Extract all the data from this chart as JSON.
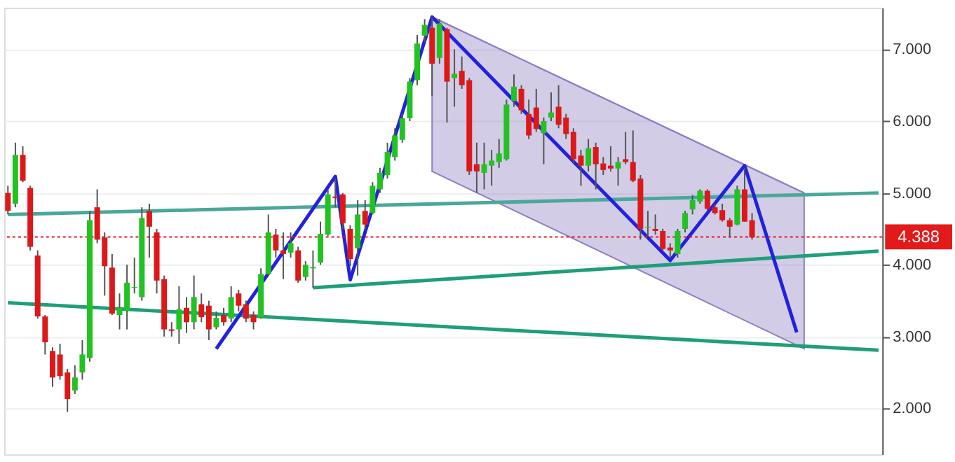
{
  "chart_data": {
    "type": "candlestick",
    "categories": [
      null,
      null,
      null,
      null,
      null,
      null,
      null,
      null,
      null,
      null,
      null,
      null,
      null,
      null,
      null,
      null,
      null,
      null,
      null,
      null,
      null,
      null,
      null,
      null,
      null,
      null,
      null,
      null,
      null,
      null,
      null,
      null,
      null,
      null,
      null,
      null,
      null,
      null,
      null,
      null,
      null,
      null,
      null,
      null,
      null,
      null,
      null,
      null,
      null,
      null,
      null,
      null,
      null,
      null,
      null,
      null,
      null,
      null,
      null,
      null,
      null,
      null,
      null,
      null,
      null,
      null,
      null,
      null,
      null,
      null,
      null,
      null,
      null,
      null,
      null,
      null,
      null,
      null,
      null,
      null,
      null,
      null,
      null,
      null,
      null,
      null,
      null,
      null,
      null,
      null,
      null,
      null,
      null,
      null,
      null,
      null,
      null,
      null,
      null,
      null,
      null,
      null,
      null,
      null,
      null,
      null,
      null,
      null,
      null,
      null,
      null,
      null,
      null,
      null,
      null,
      null,
      null,
      null
    ],
    "ohlc": [
      [
        5.0,
        5.1,
        4.7,
        4.75
      ],
      [
        4.85,
        5.7,
        4.8,
        5.53
      ],
      [
        5.53,
        5.65,
        5.15,
        5.17
      ],
      [
        5.07,
        5.1,
        4.2,
        4.25
      ],
      [
        4.13,
        4.2,
        3.25,
        3.28
      ],
      [
        3.28,
        3.3,
        2.75,
        2.92
      ],
      [
        2.8,
        2.85,
        2.3,
        2.43
      ],
      [
        2.75,
        2.9,
        2.4,
        2.45
      ],
      [
        2.5,
        2.55,
        1.95,
        2.13
      ],
      [
        2.25,
        2.6,
        2.2,
        2.43
      ],
      [
        2.5,
        2.95,
        2.4,
        2.75
      ],
      [
        2.7,
        4.75,
        2.65,
        4.62
      ],
      [
        4.8,
        5.05,
        4.3,
        4.35
      ],
      [
        4.38,
        4.45,
        3.57,
        3.98
      ],
      [
        3.96,
        4.15,
        3.3,
        3.32
      ],
      [
        3.3,
        3.6,
        3.1,
        3.4
      ],
      [
        3.36,
        4.0,
        3.1,
        3.75
      ],
      [
        3.68,
        4.1,
        3.6,
        3.69
      ],
      [
        3.55,
        4.8,
        3.5,
        4.65
      ],
      [
        4.75,
        4.85,
        4.1,
        4.53
      ],
      [
        4.45,
        4.5,
        3.6,
        3.78
      ],
      [
        3.8,
        3.85,
        3.0,
        3.1
      ],
      [
        3.1,
        3.2,
        3.0,
        3.08
      ],
      [
        3.1,
        3.7,
        2.9,
        3.38
      ],
      [
        3.4,
        3.55,
        3.05,
        3.2
      ],
      [
        3.2,
        3.85,
        3.1,
        3.55
      ],
      [
        3.45,
        3.6,
        3.2,
        3.27
      ],
      [
        3.43,
        3.5,
        2.95,
        3.1
      ],
      [
        3.13,
        3.35,
        3.1,
        3.26
      ],
      [
        3.3,
        3.4,
        3.15,
        3.2
      ],
      [
        3.25,
        3.7,
        3.2,
        3.55
      ],
      [
        3.6,
        3.65,
        3.35,
        3.43
      ],
      [
        3.45,
        3.5,
        3.2,
        3.25
      ],
      [
        3.3,
        3.35,
        3.1,
        3.2
      ],
      [
        3.27,
        3.95,
        3.25,
        3.87
      ],
      [
        3.87,
        4.7,
        3.85,
        4.45
      ],
      [
        4.42,
        4.5,
        4.1,
        4.2
      ],
      [
        4.2,
        4.45,
        3.8,
        4.15
      ],
      [
        4.17,
        4.45,
        4.1,
        4.3
      ],
      [
        4.2,
        4.25,
        3.75,
        3.78
      ],
      [
        3.83,
        4.05,
        3.78,
        4.0
      ],
      [
        3.95,
        4.2,
        3.68,
        3.97
      ],
      [
        4.03,
        4.6,
        4.0,
        4.43
      ],
      [
        4.42,
        5.05,
        4.4,
        4.98
      ],
      [
        4.95,
        5.2,
        4.8,
        4.93
      ],
      [
        4.98,
        5.0,
        4.5,
        4.58
      ],
      [
        4.5,
        4.55,
        3.98,
        4.08
      ],
      [
        4.23,
        4.9,
        3.85,
        4.7
      ],
      [
        4.75,
        4.9,
        4.5,
        4.56
      ],
      [
        4.72,
        5.15,
        4.7,
        5.1
      ],
      [
        5.05,
        5.35,
        5.0,
        5.28
      ],
      [
        5.25,
        5.7,
        5.2,
        5.57
      ],
      [
        5.5,
        5.9,
        5.45,
        5.8
      ],
      [
        5.74,
        6.1,
        5.7,
        6.04
      ],
      [
        6.04,
        6.6,
        6.0,
        6.55
      ],
      [
        6.57,
        7.2,
        6.5,
        7.08
      ],
      [
        7.19,
        7.42,
        7.1,
        7.34
      ],
      [
        7.3,
        7.45,
        6.35,
        6.8
      ],
      [
        6.88,
        7.42,
        6.8,
        7.36
      ],
      [
        7.28,
        7.3,
        5.98,
        6.55
      ],
      [
        6.6,
        7.0,
        6.2,
        6.66
      ],
      [
        6.7,
        6.9,
        6.45,
        6.5
      ],
      [
        6.57,
        6.6,
        5.25,
        5.3
      ],
      [
        5.4,
        5.7,
        5.0,
        5.3
      ],
      [
        5.28,
        5.7,
        5.05,
        5.4
      ],
      [
        5.38,
        5.6,
        5.1,
        5.45
      ],
      [
        5.43,
        5.75,
        5.35,
        5.55
      ],
      [
        5.47,
        6.3,
        5.45,
        6.23
      ],
      [
        6.28,
        6.65,
        6.2,
        6.48
      ],
      [
        6.45,
        6.5,
        6.1,
        6.15
      ],
      [
        6.1,
        6.3,
        5.75,
        5.8
      ],
      [
        6.19,
        6.45,
        5.85,
        5.89
      ],
      [
        5.83,
        6.05,
        5.4,
        6.0
      ],
      [
        6.05,
        6.4,
        6.0,
        6.12
      ],
      [
        6.2,
        6.5,
        5.9,
        5.95
      ],
      [
        6.05,
        6.1,
        5.75,
        5.82
      ],
      [
        5.85,
        5.9,
        5.4,
        5.47
      ],
      [
        5.52,
        5.6,
        5.1,
        5.38
      ],
      [
        5.38,
        5.75,
        5.3,
        5.62
      ],
      [
        5.64,
        5.7,
        5.05,
        5.4
      ],
      [
        5.41,
        5.5,
        5.25,
        5.32
      ],
      [
        5.38,
        5.65,
        5.3,
        5.34
      ],
      [
        5.34,
        5.5,
        5.1,
        5.43
      ],
      [
        5.47,
        5.85,
        5.4,
        5.43
      ],
      [
        5.43,
        5.87,
        5.15,
        5.17
      ],
      [
        5.2,
        5.25,
        4.35,
        4.5
      ],
      [
        4.52,
        4.75,
        4.4,
        4.53
      ],
      [
        4.5,
        4.7,
        4.42,
        4.47
      ],
      [
        4.47,
        4.5,
        4.2,
        4.22
      ],
      [
        4.24,
        4.3,
        4.1,
        4.2
      ],
      [
        4.15,
        4.5,
        4.1,
        4.47
      ],
      [
        4.5,
        4.75,
        4.45,
        4.72
      ],
      [
        4.77,
        4.97,
        4.7,
        4.9
      ],
      [
        4.88,
        5.05,
        4.85,
        5.03
      ],
      [
        5.03,
        5.05,
        4.75,
        4.78
      ],
      [
        4.8,
        4.85,
        4.7,
        4.72
      ],
      [
        4.76,
        4.85,
        4.6,
        4.62
      ],
      [
        4.62,
        4.65,
        4.38,
        4.53
      ],
      [
        4.56,
        5.1,
        4.55,
        5.05
      ],
      [
        5.05,
        5.35,
        4.6,
        4.6
      ],
      [
        4.62,
        4.72,
        4.35,
        4.38
      ],
      null,
      null,
      null,
      null,
      null,
      null,
      null,
      null,
      null,
      null,
      null,
      null,
      null,
      null,
      null,
      null,
      null
    ],
    "series": [
      {
        "type": "line",
        "color": "#8f7fc4",
        "upper": [
          null,
          null,
          null,
          null,
          null,
          null,
          null,
          null,
          null,
          null,
          null,
          null,
          null,
          null,
          null,
          null,
          null,
          null,
          null,
          null,
          null,
          null,
          null,
          null,
          null,
          null,
          null,
          null,
          null,
          null,
          null,
          null,
          null,
          null,
          null,
          null,
          null,
          null,
          null,
          null,
          null,
          null,
          null,
          null,
          null,
          null,
          null,
          null,
          null,
          null,
          null,
          null,
          null,
          null,
          null,
          null,
          null,
          7.45,
          null,
          null,
          null,
          null,
          null,
          null,
          null,
          null,
          null,
          null,
          null,
          null,
          null,
          null,
          null,
          null,
          null,
          null,
          null,
          null,
          null,
          null,
          null,
          null,
          null,
          null,
          null,
          null,
          null,
          null,
          null,
          null,
          null,
          null,
          null,
          null,
          null,
          null,
          null,
          null,
          null,
          null,
          null,
          null,
          null,
          null,
          null,
          null,
          null,
          5.0,
          null,
          null,
          null,
          null,
          null,
          null,
          null,
          null,
          null,
          null
        ],
        "values": [
          null,
          null,
          null,
          null,
          null,
          null,
          null,
          null,
          null,
          null,
          null,
          null,
          null,
          null,
          null,
          null,
          null,
          null,
          null,
          null,
          null,
          null,
          null,
          null,
          null,
          null,
          null,
          null,
          null,
          null,
          null,
          null,
          null,
          null,
          null,
          null,
          null,
          null,
          null,
          null,
          null,
          null,
          null,
          null,
          null,
          null,
          null,
          null,
          null,
          null,
          null,
          null,
          null,
          null,
          null,
          null,
          null,
          7.45,
          null,
          null,
          null,
          null,
          null,
          null,
          null,
          null,
          null,
          null,
          null,
          null,
          null,
          null,
          null,
          null,
          null,
          null,
          null,
          null,
          null,
          null,
          null,
          null,
          null,
          null,
          null,
          null,
          null,
          null,
          null,
          null,
          null,
          null,
          null,
          null,
          null,
          null,
          null,
          null,
          null,
          null,
          null,
          null,
          null,
          null,
          null,
          null,
          null,
          5.0,
          null,
          null,
          null,
          null,
          null,
          null,
          null,
          null,
          null,
          null
        ],
        "lower": [
          null,
          null,
          null,
          null,
          null,
          null,
          null,
          null,
          null,
          null,
          null,
          null,
          null,
          null,
          null,
          null,
          null,
          null,
          null,
          null,
          null,
          null,
          null,
          null,
          null,
          null,
          null,
          null,
          null,
          null,
          null,
          null,
          null,
          null,
          null,
          null,
          null,
          null,
          null,
          null,
          null,
          null,
          null,
          null,
          null,
          null,
          null,
          null,
          null,
          null,
          null,
          null,
          null,
          null,
          null,
          null,
          null,
          5.3,
          null,
          null,
          null,
          null,
          null,
          null,
          null,
          null,
          null,
          null,
          null,
          null,
          null,
          null,
          null,
          null,
          null,
          null,
          null,
          null,
          null,
          null,
          null,
          null,
          null,
          null,
          null,
          null,
          null,
          null,
          null,
          null,
          null,
          null,
          null,
          null,
          null,
          null,
          null,
          null,
          null,
          null,
          null,
          null,
          null,
          null,
          null,
          null,
          null,
          2.83,
          null,
          null,
          null,
          null,
          null,
          null,
          null,
          null,
          null,
          null
        ]
      },
      {
        "type": "line",
        "color": "#4aa89a",
        "values": [
          4.7,
          null,
          null,
          null,
          null,
          null,
          null,
          null,
          null,
          null,
          null,
          null,
          null,
          null,
          null,
          null,
          null,
          null,
          null,
          null,
          null,
          null,
          null,
          null,
          null,
          null,
          null,
          null,
          null,
          null,
          null,
          null,
          null,
          null,
          null,
          null,
          null,
          null,
          null,
          null,
          null,
          null,
          null,
          null,
          null,
          null,
          null,
          null,
          null,
          null,
          null,
          null,
          null,
          null,
          null,
          null,
          null,
          null,
          null,
          null,
          null,
          null,
          null,
          null,
          null,
          null,
          null,
          null,
          null,
          null,
          null,
          null,
          null,
          null,
          null,
          null,
          null,
          null,
          null,
          null,
          null,
          null,
          null,
          null,
          null,
          null,
          null,
          null,
          null,
          null,
          null,
          null,
          null,
          null,
          null,
          null,
          null,
          null,
          null,
          null,
          null,
          null,
          null,
          null,
          null,
          null,
          null,
          null,
          null,
          null,
          null,
          null,
          null,
          null,
          null,
          null,
          null,
          5.0
        ]
      },
      {
        "type": "line",
        "color": "#1f9e7a",
        "values": [
          null,
          null,
          null,
          null,
          null,
          null,
          null,
          null,
          null,
          null,
          null,
          null,
          null,
          null,
          null,
          null,
          null,
          null,
          null,
          null,
          null,
          null,
          null,
          null,
          null,
          null,
          null,
          null,
          null,
          null,
          null,
          null,
          null,
          null,
          null,
          null,
          null,
          null,
          null,
          null,
          null,
          3.68,
          null,
          null,
          null,
          null,
          null,
          null,
          null,
          null,
          null,
          null,
          null,
          null,
          null,
          null,
          null,
          null,
          null,
          null,
          null,
          null,
          null,
          null,
          null,
          null,
          null,
          null,
          null,
          null,
          null,
          null,
          null,
          null,
          null,
          null,
          null,
          null,
          null,
          null,
          null,
          null,
          null,
          null,
          null,
          null,
          null,
          null,
          null,
          null,
          null,
          null,
          null,
          null,
          null,
          null,
          null,
          null,
          null,
          null,
          null,
          null,
          null,
          null,
          null,
          null,
          null,
          null,
          null,
          null,
          null,
          null,
          null,
          null,
          null,
          null,
          null,
          4.19
        ]
      },
      {
        "type": "line",
        "color": "#1f9e7a",
        "values": [
          3.47,
          null,
          null,
          null,
          null,
          null,
          null,
          null,
          null,
          null,
          null,
          null,
          null,
          null,
          null,
          null,
          null,
          null,
          null,
          null,
          null,
          null,
          null,
          null,
          null,
          null,
          null,
          null,
          null,
          null,
          null,
          null,
          null,
          null,
          null,
          null,
          null,
          null,
          null,
          null,
          null,
          null,
          null,
          null,
          null,
          null,
          null,
          null,
          null,
          null,
          null,
          null,
          null,
          null,
          null,
          null,
          null,
          null,
          null,
          null,
          null,
          null,
          null,
          null,
          null,
          null,
          null,
          null,
          null,
          null,
          null,
          null,
          null,
          null,
          null,
          null,
          null,
          null,
          null,
          null,
          null,
          null,
          null,
          null,
          null,
          null,
          null,
          null,
          null,
          null,
          null,
          null,
          null,
          null,
          null,
          null,
          null,
          null,
          null,
          null,
          null,
          null,
          null,
          null,
          null,
          null,
          null,
          null,
          null,
          null,
          null,
          null,
          null,
          null,
          null,
          null,
          null,
          2.81
        ]
      },
      {
        "type": "line",
        "color": "#2222dd",
        "values": [
          null,
          null,
          null,
          null,
          null,
          null,
          null,
          null,
          null,
          null,
          null,
          null,
          null,
          null,
          null,
          null,
          null,
          null,
          null,
          null,
          null,
          null,
          null,
          null,
          null,
          null,
          null,
          null,
          2.83,
          null,
          null,
          null,
          null,
          null,
          null,
          null,
          null,
          null,
          null,
          null,
          null,
          null,
          null,
          null,
          5.23,
          null,
          3.79,
          null,
          null,
          null,
          null,
          null,
          null,
          null,
          null,
          null,
          null,
          7.45,
          null,
          null,
          null,
          null,
          null,
          null,
          null,
          null,
          null,
          null,
          null,
          null,
          null,
          null,
          null,
          null,
          null,
          null,
          null,
          null,
          null,
          null,
          null,
          null,
          null,
          null,
          null,
          null,
          null,
          null,
          null,
          4.06,
          null,
          null,
          null,
          null,
          null,
          null,
          null,
          null,
          null,
          5.38,
          null,
          null,
          null,
          null,
          null,
          null,
          3.06,
          null,
          null,
          null,
          null,
          null,
          null,
          null,
          null,
          null,
          null,
          null
        ]
      }
    ],
    "ref_lines": [
      {
        "axis": "y",
        "value": 4.388,
        "label": "4.388",
        "color": "#e31a1a",
        "line_style": "dotted"
      }
    ],
    "ylim": [
      1.36,
      7.58
    ],
    "yticks": [
      {
        "value": 2,
        "label": "2.000"
      },
      {
        "value": 3,
        "label": "3.000"
      },
      {
        "value": 4,
        "label": "4.000"
      },
      {
        "value": 5,
        "label": "5.000"
      },
      {
        "value": 6,
        "label": "6.000"
      },
      {
        "value": 7,
        "label": "7.000"
      }
    ],
    "grid": "y",
    "tick_labels": "y"
  }
}
